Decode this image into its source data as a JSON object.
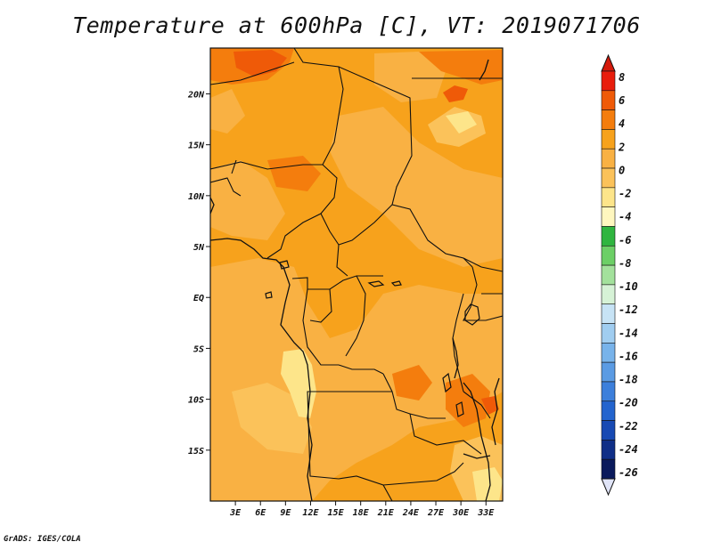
{
  "title": "Temperature at 600hPa [C], VT: 2019071706",
  "credit": "GrADS: IGES/COLA",
  "map": {
    "lon_ticks": [
      "3E",
      "6E",
      "9E",
      "12E",
      "15E",
      "18E",
      "21E",
      "24E",
      "27E",
      "30E",
      "33E"
    ],
    "lat_ticks": [
      "20N",
      "15N",
      "10N",
      "5N",
      "EQ",
      "5S",
      "10S",
      "15S"
    ],
    "lon_range": [
      "0",
      "35E"
    ],
    "lat_range": [
      "20S",
      "24.5N"
    ],
    "field_colors": {
      "light_yellow": "#fde58a",
      "pale_orange": "#fbc25a",
      "orange_light": "#f9b143",
      "orange": "#f7a21c",
      "deep_orange": "#f47d0d",
      "red_orange": "#ef5a08",
      "boundary": "#111111"
    }
  },
  "colorbar": {
    "labels": [
      "8",
      "6",
      "4",
      "2",
      "0",
      "-2",
      "-4",
      "-6",
      "-8",
      "-10",
      "-12",
      "-14",
      "-16",
      "-18",
      "-20",
      "-22",
      "-24",
      "-26"
    ],
    "colors": [
      "#e81d0c",
      "#ef5a08",
      "#f47d0d",
      "#f7a21c",
      "#f9b143",
      "#fbc25a",
      "#fde58a",
      "#fff7bf",
      "#2fb53f",
      "#6ccf66",
      "#a3e19c",
      "#d6f2d6",
      "#c7e3f5",
      "#a0cdf0",
      "#78b3ea",
      "#5b9be3",
      "#3c7fdb",
      "#2364ce",
      "#1749b3",
      "#0f2e87",
      "#0a1a5c"
    ],
    "top_arrow_color": "#d41a0b",
    "bottom_arrow_color": "#e0e4f7"
  }
}
